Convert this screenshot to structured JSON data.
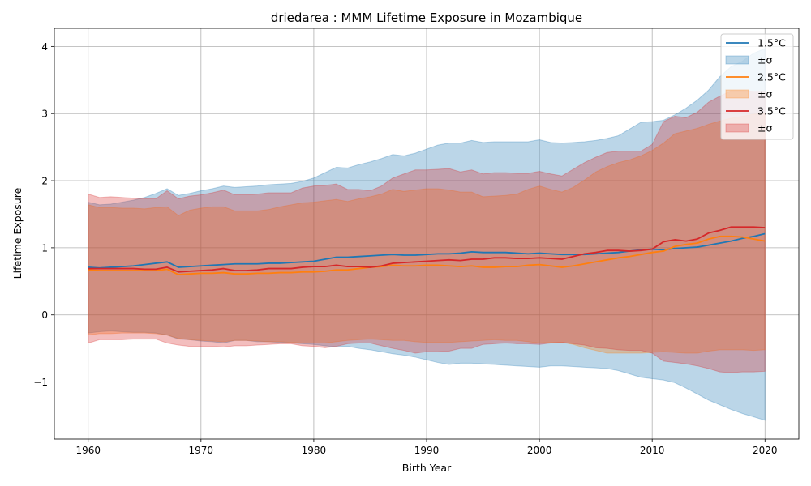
{
  "chart_data": {
    "type": "line",
    "title": "driedarea : MMM Lifetime Exposure in Mozambique",
    "xlabel": "Birth Year",
    "ylabel": "Lifetime Exposure",
    "xlim": [
      1957,
      2023
    ],
    "ylim": [
      -1.85,
      4.27
    ],
    "xticks": [
      1960,
      1970,
      1980,
      1990,
      2000,
      2010,
      2020
    ],
    "yticks": [
      -1,
      0,
      1,
      2,
      3,
      4
    ],
    "ytick_labels": [
      "−1",
      "0",
      "1",
      "2",
      "3",
      "4"
    ],
    "grid": true,
    "legend_position": "top-right",
    "x": [
      1960,
      1961,
      1962,
      1963,
      1964,
      1965,
      1966,
      1967,
      1968,
      1969,
      1970,
      1971,
      1972,
      1973,
      1974,
      1975,
      1976,
      1977,
      1978,
      1979,
      1980,
      1981,
      1982,
      1983,
      1984,
      1985,
      1986,
      1987,
      1988,
      1989,
      1990,
      1991,
      1992,
      1993,
      1994,
      1995,
      1996,
      1997,
      1998,
      1999,
      2000,
      2001,
      2002,
      2003,
      2004,
      2005,
      2006,
      2007,
      2008,
      2009,
      2010,
      2011,
      2012,
      2013,
      2014,
      2015,
      2016,
      2017,
      2018,
      2019,
      2020
    ],
    "series": [
      {
        "name": "1.5°C",
        "band_name": "±σ",
        "color": "#1f77b4",
        "band_color": "#1f77b4",
        "mean": [
          0.71,
          0.7,
          0.71,
          0.72,
          0.73,
          0.75,
          0.77,
          0.79,
          0.71,
          0.72,
          0.73,
          0.74,
          0.75,
          0.76,
          0.76,
          0.76,
          0.77,
          0.77,
          0.78,
          0.79,
          0.8,
          0.83,
          0.86,
          0.86,
          0.87,
          0.88,
          0.89,
          0.9,
          0.89,
          0.89,
          0.9,
          0.91,
          0.91,
          0.92,
          0.94,
          0.93,
          0.93,
          0.93,
          0.92,
          0.91,
          0.92,
          0.91,
          0.9,
          0.9,
          0.9,
          0.91,
          0.92,
          0.93,
          0.95,
          0.97,
          0.98,
          0.97,
          0.99,
          1.0,
          1.01,
          1.04,
          1.07,
          1.1,
          1.14,
          1.17,
          1.21
        ],
        "upper": [
          1.68,
          1.64,
          1.65,
          1.68,
          1.71,
          1.75,
          1.81,
          1.88,
          1.78,
          1.81,
          1.85,
          1.88,
          1.92,
          1.9,
          1.91,
          1.92,
          1.94,
          1.95,
          1.96,
          1.99,
          2.04,
          2.12,
          2.2,
          2.19,
          2.24,
          2.28,
          2.33,
          2.39,
          2.37,
          2.41,
          2.47,
          2.53,
          2.56,
          2.56,
          2.6,
          2.57,
          2.58,
          2.58,
          2.58,
          2.58,
          2.61,
          2.57,
          2.56,
          2.57,
          2.58,
          2.6,
          2.63,
          2.67,
          2.77,
          2.87,
          2.88,
          2.9,
          2.98,
          3.08,
          3.2,
          3.35,
          3.55,
          3.7,
          3.78,
          3.9,
          3.97
        ],
        "lower": [
          -0.27,
          -0.25,
          -0.24,
          -0.25,
          -0.26,
          -0.26,
          -0.27,
          -0.3,
          -0.36,
          -0.37,
          -0.39,
          -0.4,
          -0.42,
          -0.38,
          -0.38,
          -0.4,
          -0.4,
          -0.41,
          -0.42,
          -0.43,
          -0.44,
          -0.46,
          -0.48,
          -0.47,
          -0.5,
          -0.52,
          -0.55,
          -0.58,
          -0.6,
          -0.63,
          -0.67,
          -0.71,
          -0.74,
          -0.72,
          -0.72,
          -0.73,
          -0.74,
          -0.75,
          -0.76,
          -0.77,
          -0.78,
          -0.76,
          -0.76,
          -0.77,
          -0.78,
          -0.79,
          -0.8,
          -0.83,
          -0.88,
          -0.93,
          -0.95,
          -0.97,
          -1.01,
          -1.09,
          -1.18,
          -1.27,
          -1.34,
          -1.41,
          -1.47,
          -1.52,
          -1.57
        ]
      },
      {
        "name": "2.5°C",
        "band_name": "±σ",
        "color": "#ff7f0e",
        "band_color": "#ff7f0e",
        "mean": [
          0.67,
          0.66,
          0.66,
          0.66,
          0.66,
          0.66,
          0.66,
          0.68,
          0.6,
          0.61,
          0.62,
          0.62,
          0.63,
          0.61,
          0.61,
          0.62,
          0.62,
          0.63,
          0.63,
          0.64,
          0.64,
          0.65,
          0.67,
          0.67,
          0.69,
          0.71,
          0.72,
          0.74,
          0.73,
          0.73,
          0.74,
          0.74,
          0.73,
          0.72,
          0.73,
          0.71,
          0.71,
          0.72,
          0.72,
          0.74,
          0.75,
          0.73,
          0.71,
          0.73,
          0.76,
          0.79,
          0.82,
          0.85,
          0.87,
          0.9,
          0.93,
          0.95,
          1.02,
          1.05,
          1.07,
          1.13,
          1.17,
          1.17,
          1.16,
          1.13,
          1.1
        ],
        "upper": [
          1.64,
          1.6,
          1.6,
          1.59,
          1.59,
          1.58,
          1.6,
          1.61,
          1.48,
          1.56,
          1.59,
          1.61,
          1.61,
          1.55,
          1.55,
          1.55,
          1.57,
          1.61,
          1.64,
          1.67,
          1.68,
          1.7,
          1.72,
          1.69,
          1.73,
          1.76,
          1.8,
          1.87,
          1.84,
          1.86,
          1.88,
          1.88,
          1.86,
          1.83,
          1.83,
          1.76,
          1.77,
          1.78,
          1.8,
          1.87,
          1.92,
          1.87,
          1.83,
          1.9,
          2.01,
          2.13,
          2.21,
          2.27,
          2.31,
          2.37,
          2.45,
          2.56,
          2.7,
          2.74,
          2.78,
          2.84,
          2.89,
          2.93,
          2.96,
          2.99,
          3.0
        ],
        "lower": [
          -0.3,
          -0.28,
          -0.28,
          -0.27,
          -0.27,
          -0.27,
          -0.28,
          -0.3,
          -0.35,
          -0.37,
          -0.38,
          -0.39,
          -0.4,
          -0.38,
          -0.38,
          -0.39,
          -0.4,
          -0.4,
          -0.41,
          -0.42,
          -0.42,
          -0.42,
          -0.4,
          -0.38,
          -0.37,
          -0.36,
          -0.37,
          -0.38,
          -0.38,
          -0.4,
          -0.41,
          -0.41,
          -0.41,
          -0.4,
          -0.39,
          -0.38,
          -0.37,
          -0.38,
          -0.38,
          -0.4,
          -0.42,
          -0.41,
          -0.41,
          -0.44,
          -0.49,
          -0.53,
          -0.57,
          -0.57,
          -0.57,
          -0.57,
          -0.56,
          -0.55,
          -0.56,
          -0.57,
          -0.57,
          -0.54,
          -0.52,
          -0.52,
          -0.52,
          -0.53,
          -0.52
        ]
      },
      {
        "name": "3.5°C",
        "band_name": "±σ",
        "color": "#d62728",
        "band_color": "#d62728",
        "mean": [
          0.69,
          0.69,
          0.69,
          0.69,
          0.69,
          0.68,
          0.68,
          0.71,
          0.64,
          0.65,
          0.66,
          0.67,
          0.69,
          0.66,
          0.66,
          0.67,
          0.69,
          0.69,
          0.69,
          0.71,
          0.72,
          0.72,
          0.74,
          0.72,
          0.72,
          0.71,
          0.73,
          0.77,
          0.78,
          0.79,
          0.8,
          0.81,
          0.82,
          0.81,
          0.83,
          0.83,
          0.85,
          0.85,
          0.84,
          0.84,
          0.85,
          0.84,
          0.83,
          0.87,
          0.91,
          0.93,
          0.96,
          0.96,
          0.95,
          0.96,
          0.98,
          1.09,
          1.12,
          1.1,
          1.13,
          1.22,
          1.26,
          1.31,
          1.31,
          1.31,
          1.3
        ],
        "upper": [
          1.8,
          1.75,
          1.76,
          1.75,
          1.74,
          1.73,
          1.73,
          1.85,
          1.73,
          1.77,
          1.79,
          1.82,
          1.86,
          1.79,
          1.79,
          1.8,
          1.82,
          1.82,
          1.82,
          1.89,
          1.92,
          1.93,
          1.95,
          1.87,
          1.87,
          1.85,
          1.92,
          2.04,
          2.1,
          2.16,
          2.16,
          2.17,
          2.18,
          2.13,
          2.16,
          2.1,
          2.12,
          2.12,
          2.11,
          2.11,
          2.14,
          2.1,
          2.07,
          2.17,
          2.27,
          2.35,
          2.42,
          2.44,
          2.44,
          2.44,
          2.54,
          2.88,
          2.96,
          2.94,
          3.02,
          3.17,
          3.26,
          3.34,
          3.34,
          3.33,
          3.33
        ],
        "lower": [
          -0.42,
          -0.37,
          -0.37,
          -0.37,
          -0.36,
          -0.36,
          -0.36,
          -0.42,
          -0.45,
          -0.47,
          -0.47,
          -0.47,
          -0.48,
          -0.46,
          -0.46,
          -0.45,
          -0.44,
          -0.43,
          -0.43,
          -0.46,
          -0.47,
          -0.49,
          -0.47,
          -0.43,
          -0.42,
          -0.42,
          -0.46,
          -0.5,
          -0.53,
          -0.57,
          -0.55,
          -0.55,
          -0.54,
          -0.5,
          -0.5,
          -0.44,
          -0.43,
          -0.42,
          -0.43,
          -0.43,
          -0.44,
          -0.42,
          -0.41,
          -0.43,
          -0.45,
          -0.49,
          -0.5,
          -0.52,
          -0.53,
          -0.53,
          -0.57,
          -0.69,
          -0.71,
          -0.73,
          -0.76,
          -0.8,
          -0.85,
          -0.86,
          -0.85,
          -0.85,
          -0.84
        ]
      }
    ]
  }
}
